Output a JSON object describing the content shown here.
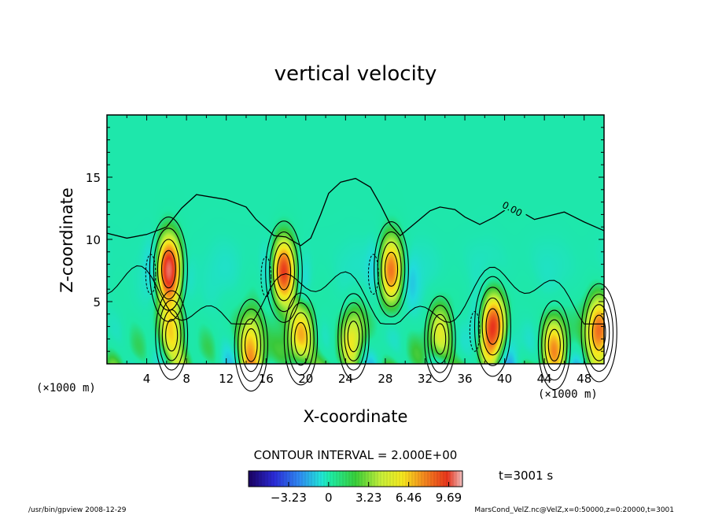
{
  "chart_data": {
    "type": "heatmap",
    "title": "vertical velocity",
    "xlabel": "X-coordinate",
    "ylabel": "Z-coordinate",
    "x_unit_left": "(×1000 m)",
    "x_unit_right": "(×1000 m)",
    "xlim": [
      0,
      50
    ],
    "ylim": [
      0,
      20
    ],
    "x_ticks": [
      "4",
      "8",
      "12",
      "16",
      "20",
      "24",
      "28",
      "32",
      "36",
      "40",
      "44",
      "48"
    ],
    "y_ticks": [
      "5",
      "10",
      "15"
    ],
    "contour_interval_text": "CONTOUR INTERVAL = 2.000E+00",
    "contour_label": "0.00",
    "colorbar": {
      "ticks": [
        "−3.23",
        "0",
        "3.23",
        "6.46",
        "9.69"
      ],
      "tick_values": [
        -3.23,
        0,
        3.23,
        6.46,
        9.69
      ],
      "range": [
        -6.46,
        10.8
      ]
    },
    "time_text": "t=3001 s",
    "footer_left": "/usr/bin/gpview   2008-12-29",
    "footer_right": "MarsCond_VelZ.nc@VelZ,x=0:50000,z=0:20000,t=3001",
    "updrafts": [
      {
        "x": 6.2,
        "z": 7.6,
        "peak": 10.0
      },
      {
        "x": 17.8,
        "z": 7.4,
        "peak": 9.0
      },
      {
        "x": 28.6,
        "z": 7.6,
        "peak": 7.0
      },
      {
        "x": 38.8,
        "z": 3.0,
        "peak": 8.5
      },
      {
        "x": 49.5,
        "z": 2.5,
        "peak": 8.0
      },
      {
        "x": 6.5,
        "z": 2.3,
        "peak": 5.0
      },
      {
        "x": 14.5,
        "z": 1.5,
        "peak": 6.0
      },
      {
        "x": 19.5,
        "z": 2.0,
        "peak": 6.0
      },
      {
        "x": 45.0,
        "z": 1.5,
        "peak": 5.0
      },
      {
        "x": 33.5,
        "z": 2.0,
        "peak": 4.0
      },
      {
        "x": 24.8,
        "z": 2.2,
        "peak": 4.0
      }
    ],
    "zero_contour": [
      [
        0,
        10.5
      ],
      [
        2,
        10.1
      ],
      [
        4,
        10.4
      ],
      [
        6,
        11.0
      ],
      [
        7.5,
        12.5
      ],
      [
        9,
        13.6
      ],
      [
        12,
        13.2
      ],
      [
        14,
        12.6
      ],
      [
        15,
        11.6
      ],
      [
        16.8,
        10.3
      ],
      [
        18,
        10.2
      ],
      [
        19.5,
        9.5
      ],
      [
        20.5,
        10.1
      ],
      [
        21.5,
        12.0
      ],
      [
        22.3,
        13.7
      ],
      [
        23.5,
        14.6
      ],
      [
        25,
        14.9
      ],
      [
        26.5,
        14.2
      ],
      [
        27.5,
        12.8
      ],
      [
        28.5,
        11.2
      ],
      [
        29.5,
        10.3
      ],
      [
        31,
        11.3
      ],
      [
        32.5,
        12.3
      ],
      [
        33.5,
        12.6
      ],
      [
        35,
        12.4
      ],
      [
        36,
        11.8
      ],
      [
        37.5,
        11.2
      ],
      [
        39,
        11.8
      ],
      [
        40.5,
        12.6
      ],
      [
        41.5,
        12.3
      ],
      [
        43,
        11.6
      ],
      [
        44.5,
        11.9
      ],
      [
        46,
        12.2
      ],
      [
        48,
        11.4
      ],
      [
        50,
        10.7
      ]
    ]
  }
}
